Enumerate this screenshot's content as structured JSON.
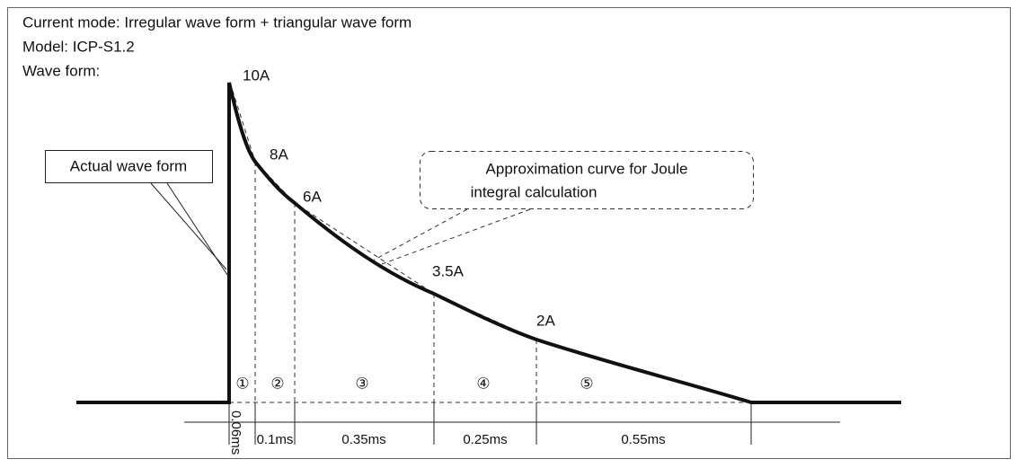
{
  "header": {
    "lines": [
      "Current mode: Irregular wave form + triangular wave form",
      "Model: ICP-S1.2",
      "Wave form:"
    ]
  },
  "wave_labels": [
    "10A",
    "8A",
    "6A",
    "3.5A",
    "2A"
  ],
  "segments": [
    {
      "number": "①",
      "duration": "0.06ms"
    },
    {
      "number": "②",
      "duration": "0.1ms"
    },
    {
      "number": "③",
      "duration": "0.35ms"
    },
    {
      "number": "④",
      "duration": "0.25ms"
    },
    {
      "number": "⑤",
      "duration": "0.55ms"
    }
  ],
  "callouts": {
    "actual": "Actual wave form",
    "approximation": [
      "Approximation curve for Joule",
      "integral calculation"
    ]
  }
}
